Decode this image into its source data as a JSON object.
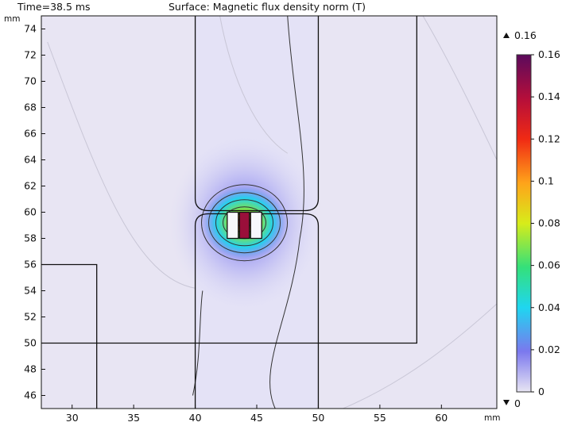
{
  "header": {
    "time_label": "Time=38.5 ms",
    "surface_label": "Surface: Magnetic flux density norm (T)"
  },
  "chart_data": {
    "type": "heatmap",
    "title": "Surface: Magnetic flux density norm (T)",
    "subtitle": "Time=38.5 ms",
    "x_unit": "mm",
    "y_unit": "mm",
    "xlim": [
      27.5,
      64.5
    ],
    "ylim": [
      45,
      75
    ],
    "x_ticks": [
      30,
      35,
      40,
      45,
      50,
      55,
      60
    ],
    "y_ticks": [
      46,
      48,
      50,
      52,
      54,
      56,
      58,
      60,
      62,
      64,
      66,
      68,
      70,
      72,
      74
    ],
    "field_peak": {
      "x": 44,
      "y": 59.2,
      "value": 0.16
    },
    "color_range": {
      "max_marker": "0.16",
      "min_marker": "0",
      "min": 0,
      "max": 0.16
    },
    "colorbar": {
      "ticks": [
        {
          "value": 0.16,
          "label": "0.16"
        },
        {
          "value": 0.14,
          "label": "0.14"
        },
        {
          "value": 0.12,
          "label": "0.12"
        },
        {
          "value": 0.1,
          "label": "0.1"
        },
        {
          "value": 0.08,
          "label": "0.08"
        },
        {
          "value": 0.06,
          "label": "0.06"
        },
        {
          "value": 0.04,
          "label": "0.04"
        },
        {
          "value": 0.02,
          "label": "0.02"
        },
        {
          "value": 0,
          "label": "0"
        }
      ],
      "colors": [
        "#e8e5f3",
        "#7b78ee",
        "#1fd6f0",
        "#34e07a",
        "#d7ec1a",
        "#ffa31a",
        "#f02a14",
        "#b50e3a",
        "#5b0a5c"
      ]
    },
    "geometry": {
      "vertical_bar": [
        40,
        50
      ],
      "air_gap_y": 60,
      "right_L": {
        "x": 58,
        "y_bottom": 50
      },
      "left_L": {
        "x": 32,
        "y_top": 56
      },
      "coil_slots": [
        [
          42.6,
          43.5
        ],
        [
          44.5,
          45.4
        ]
      ],
      "coil_y": [
        58,
        60
      ]
    },
    "grid": false
  }
}
